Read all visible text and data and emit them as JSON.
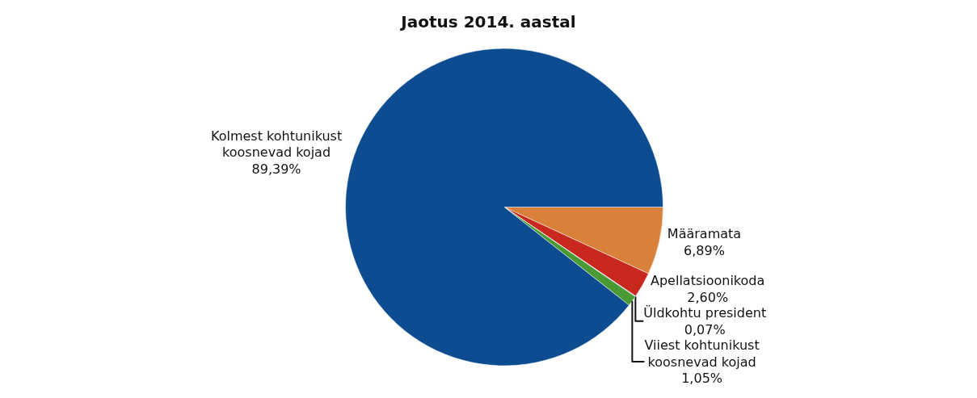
{
  "chart_data": {
    "type": "pie",
    "title": "Jaotus 2014. aastal",
    "categories": [
      "Määramata",
      "Apellatsioonikoda",
      "Üldkohtu president",
      "Viiest kohtunikust koosnevad kojad",
      "Kolmest kohtunikust koosnevad kojad"
    ],
    "values": [
      6.89,
      2.6,
      0.07,
      1.05,
      89.39
    ],
    "value_labels": [
      "6,89%",
      "2,60%",
      "0,07%",
      "1,05%",
      "89,39%"
    ],
    "colors": [
      "#d9803a",
      "#c8281e",
      "#8fa3cc",
      "#4a9a34",
      "#0e4c92"
    ],
    "legend": false
  }
}
